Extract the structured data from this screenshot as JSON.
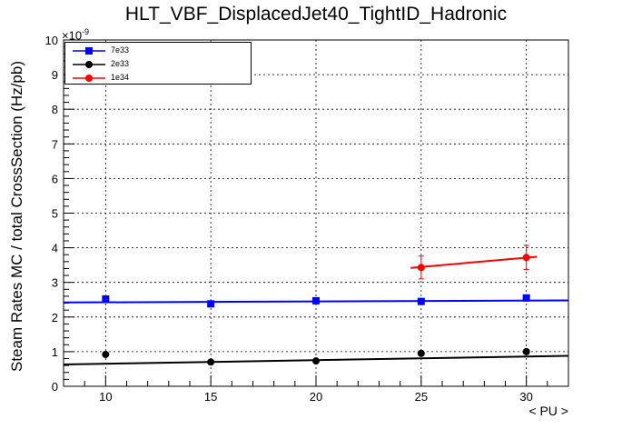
{
  "chart_data": {
    "type": "scatter",
    "title": "HLT_VBF_DisplacedJet40_TightID_Hadronic",
    "xlabel": "< PU >",
    "ylabel": "Steam Rates MC / total CrossSection (Hz/pb)",
    "y_exponent_label": "×10",
    "y_exponent_power": "-9",
    "xlim": [
      8,
      32
    ],
    "ylim": [
      0,
      10
    ],
    "x_ticks": [
      10,
      15,
      20,
      25,
      30
    ],
    "y_ticks": [
      0,
      1,
      2,
      3,
      4,
      5,
      6,
      7,
      8,
      9,
      10
    ],
    "grid": true,
    "legend_position": "top-left",
    "series": [
      {
        "name": "7e33",
        "color": "#0000ff",
        "marker": "square",
        "x": [
          10,
          15,
          20,
          25,
          30
        ],
        "y": [
          2.52,
          2.38,
          2.47,
          2.45,
          2.55
        ],
        "yerr": [
          0.03,
          0.03,
          0.03,
          0.03,
          0.03
        ],
        "fit": {
          "x": [
            8,
            32
          ],
          "y": [
            2.42,
            2.48
          ]
        }
      },
      {
        "name": "2e33",
        "color": "#000000",
        "marker": "circle",
        "x": [
          10,
          15,
          20,
          25,
          30
        ],
        "y": [
          0.92,
          0.7,
          0.73,
          0.95,
          1.0
        ],
        "yerr": [
          0.04,
          0.04,
          0.04,
          0.05,
          0.06
        ],
        "fit": {
          "x": [
            8,
            32
          ],
          "y": [
            0.63,
            0.88
          ]
        }
      },
      {
        "name": "1e34",
        "color": "#ff0000",
        "marker": "circle",
        "x": [
          25,
          30
        ],
        "y": [
          3.43,
          3.72
        ],
        "yerr": [
          0.33,
          0.35
        ],
        "fit": {
          "x": [
            24.5,
            30.5
          ],
          "y": [
            3.42,
            3.74
          ]
        }
      }
    ]
  }
}
